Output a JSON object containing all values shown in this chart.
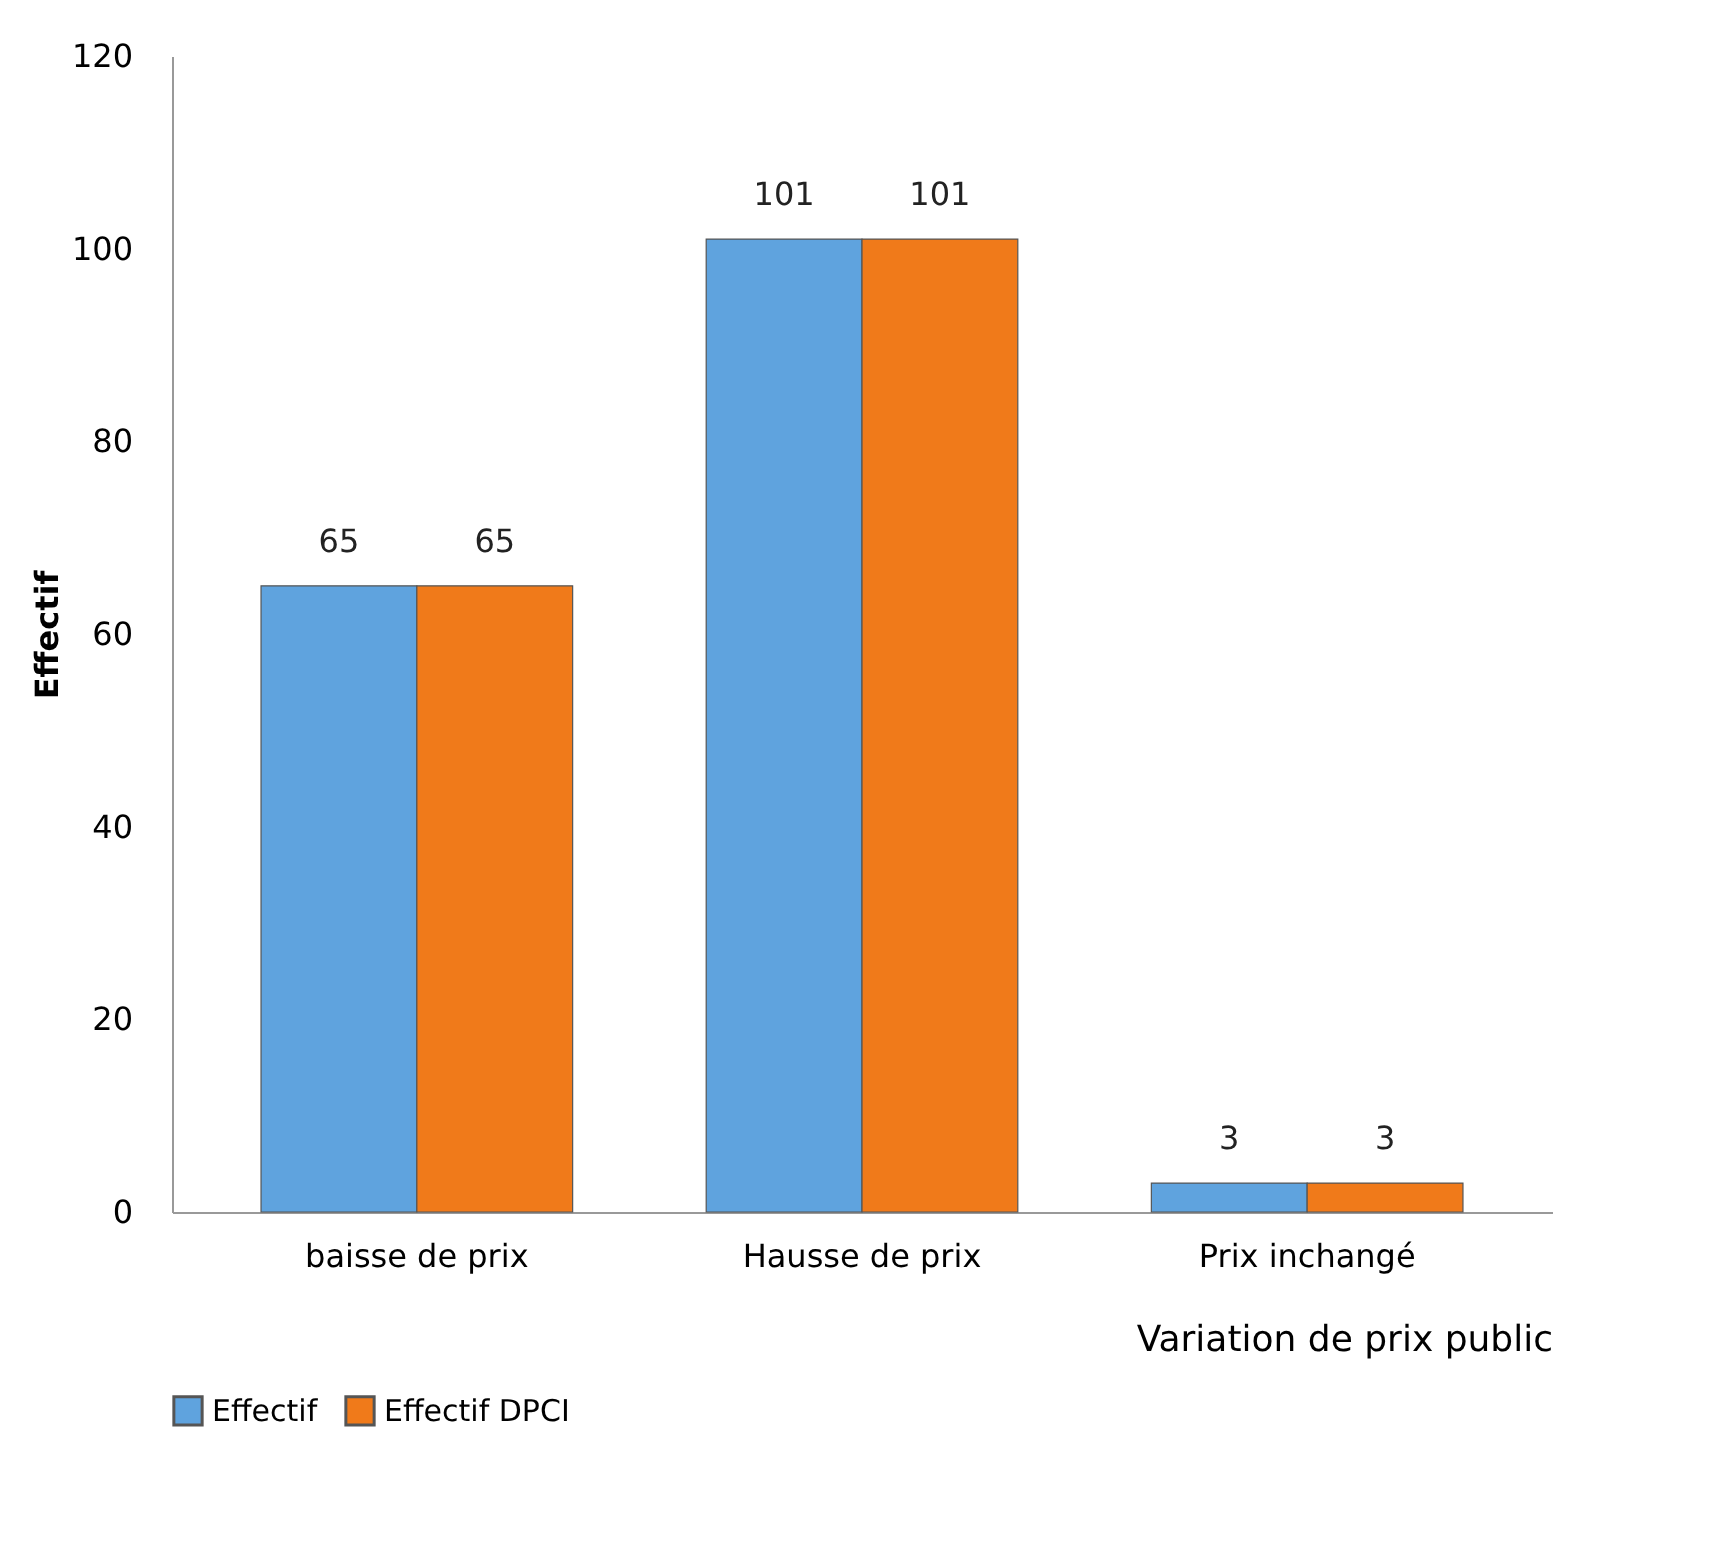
{
  "chart_data": {
    "type": "bar",
    "xlabel": "Variation de prix public",
    "ylabel": "Effectif",
    "categories": [
      "baisse de prix",
      "Hausse de prix",
      "Prix inchangé"
    ],
    "series": [
      {
        "name": "Effectif",
        "color": "#5fa3de",
        "values": [
          65,
          101,
          3
        ]
      },
      {
        "name": "Effectif DPCI",
        "color": "#f07a1a",
        "values": [
          65,
          101,
          3
        ]
      }
    ],
    "ylim": [
      0,
      120
    ],
    "yticks": [
      0,
      20,
      40,
      60,
      80,
      100,
      120
    ],
    "grid": false,
    "legend": "bottom",
    "data_labels": true
  }
}
